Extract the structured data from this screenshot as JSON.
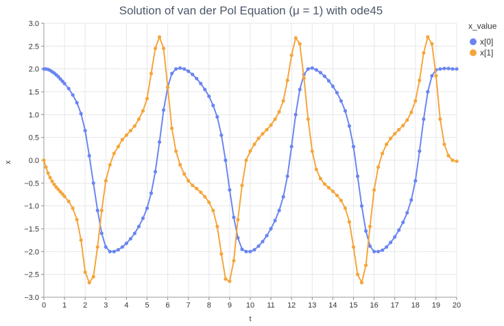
{
  "chart_data": {
    "type": "line",
    "title": "Solution of van der Pol Equation (μ = 1) with ode45",
    "xlabel": "t",
    "ylabel": "x",
    "xlim": [
      0,
      20
    ],
    "ylim": [
      -3.0,
      3.0
    ],
    "x_ticks": [
      "0",
      "1",
      "2",
      "3",
      "4",
      "5",
      "6",
      "7",
      "8",
      "9",
      "10",
      "11",
      "12",
      "13",
      "14",
      "15",
      "16",
      "17",
      "18",
      "19",
      "20"
    ],
    "y_ticks": [
      "3.0",
      "2.5",
      "2.0",
      "1.5",
      "1.0",
      "0.5",
      "0.0",
      "−0.5",
      "−1.0",
      "−1.5",
      "−2.0",
      "−2.5",
      "−3.0"
    ],
    "grid": true,
    "legend": {
      "title": "x_value",
      "placement": "right"
    },
    "series": [
      {
        "name": "x[0]",
        "color": "#6a85f0",
        "t": [
          0,
          0.1,
          0.2,
          0.3,
          0.4,
          0.5,
          0.6,
          0.7,
          0.8,
          0.9,
          1.0,
          1.2,
          1.4,
          1.6,
          1.8,
          2.0,
          2.2,
          2.4,
          2.6,
          2.8,
          3.0,
          3.2,
          3.4,
          3.6,
          3.8,
          4.0,
          4.2,
          4.4,
          4.6,
          4.8,
          5.0,
          5.2,
          5.4,
          5.6,
          5.8,
          6.0,
          6.2,
          6.4,
          6.6,
          6.8,
          7.0,
          7.2,
          7.4,
          7.6,
          7.8,
          8.0,
          8.2,
          8.4,
          8.6,
          8.8,
          9.0,
          9.2,
          9.4,
          9.6,
          9.8,
          10.0,
          10.2,
          10.4,
          10.6,
          10.8,
          11.0,
          11.2,
          11.4,
          11.6,
          11.8,
          12.0,
          12.2,
          12.4,
          12.6,
          12.8,
          13.0,
          13.2,
          13.4,
          13.6,
          13.8,
          14.0,
          14.2,
          14.4,
          14.6,
          14.8,
          15.0,
          15.2,
          15.4,
          15.6,
          15.8,
          16.0,
          16.2,
          16.4,
          16.6,
          16.8,
          17.0,
          17.2,
          17.4,
          17.6,
          17.8,
          18.0,
          18.2,
          18.4,
          18.6,
          18.8,
          19.0,
          19.2,
          19.4,
          19.6,
          19.8,
          20.0
        ],
        "values": [
          2.0,
          2.0,
          1.99,
          1.97,
          1.94,
          1.91,
          1.87,
          1.83,
          1.78,
          1.73,
          1.68,
          1.57,
          1.43,
          1.26,
          1.02,
          0.65,
          0.1,
          -0.5,
          -1.1,
          -1.6,
          -1.9,
          -2.0,
          -2.0,
          -1.96,
          -1.9,
          -1.82,
          -1.72,
          -1.6,
          -1.45,
          -1.27,
          -1.05,
          -0.72,
          -0.25,
          0.4,
          1.1,
          1.6,
          1.9,
          2.0,
          2.02,
          2.0,
          1.95,
          1.88,
          1.79,
          1.68,
          1.55,
          1.4,
          1.2,
          0.95,
          0.55,
          0.0,
          -0.65,
          -1.25,
          -1.7,
          -1.95,
          -2.0,
          -2.0,
          -1.96,
          -1.88,
          -1.78,
          -1.65,
          -1.5,
          -1.32,
          -1.1,
          -0.8,
          -0.35,
          0.3,
          1.0,
          1.55,
          1.88,
          2.0,
          2.02,
          1.98,
          1.92,
          1.84,
          1.74,
          1.62,
          1.48,
          1.3,
          1.08,
          0.75,
          0.3,
          -0.35,
          -1.0,
          -1.55,
          -1.88,
          -2.0,
          -2.0,
          -1.97,
          -1.9,
          -1.8,
          -1.68,
          -1.53,
          -1.36,
          -1.15,
          -0.87,
          -0.45,
          0.2,
          0.9,
          1.5,
          1.85,
          1.98,
          2.0,
          2.01,
          2.01,
          2.0,
          2.0
        ]
      },
      {
        "name": "x[1]",
        "color": "#f5a53b",
        "t": [
          0,
          0.1,
          0.2,
          0.3,
          0.4,
          0.5,
          0.6,
          0.7,
          0.8,
          0.9,
          1.0,
          1.2,
          1.4,
          1.6,
          1.8,
          2.0,
          2.2,
          2.4,
          2.6,
          2.8,
          3.0,
          3.2,
          3.4,
          3.6,
          3.8,
          4.0,
          4.2,
          4.4,
          4.6,
          4.8,
          5.0,
          5.2,
          5.4,
          5.6,
          5.8,
          6.0,
          6.2,
          6.4,
          6.6,
          6.8,
          7.0,
          7.2,
          7.4,
          7.6,
          7.8,
          8.0,
          8.2,
          8.4,
          8.6,
          8.8,
          9.0,
          9.2,
          9.4,
          9.6,
          9.8,
          10.0,
          10.2,
          10.4,
          10.6,
          10.8,
          11.0,
          11.2,
          11.4,
          11.6,
          11.8,
          12.0,
          12.2,
          12.4,
          12.6,
          12.8,
          13.0,
          13.2,
          13.4,
          13.6,
          13.8,
          14.0,
          14.2,
          14.4,
          14.6,
          14.8,
          15.0,
          15.2,
          15.4,
          15.6,
          15.8,
          16.0,
          16.2,
          16.4,
          16.6,
          16.8,
          17.0,
          17.2,
          17.4,
          17.6,
          17.8,
          18.0,
          18.2,
          18.4,
          18.6,
          18.8,
          19.0,
          19.2,
          19.4,
          19.6,
          19.8,
          20.0
        ],
        "values": [
          0.0,
          -0.15,
          -0.28,
          -0.38,
          -0.46,
          -0.53,
          -0.59,
          -0.64,
          -0.69,
          -0.74,
          -0.79,
          -0.9,
          -1.05,
          -1.3,
          -1.75,
          -2.45,
          -2.68,
          -2.55,
          -1.9,
          -1.1,
          -0.45,
          -0.1,
          0.15,
          0.3,
          0.45,
          0.55,
          0.65,
          0.75,
          0.9,
          1.08,
          1.35,
          1.9,
          2.45,
          2.7,
          2.45,
          1.6,
          0.7,
          0.2,
          -0.1,
          -0.3,
          -0.45,
          -0.55,
          -0.62,
          -0.7,
          -0.8,
          -0.92,
          -1.1,
          -1.45,
          -2.05,
          -2.6,
          -2.65,
          -2.2,
          -1.3,
          -0.55,
          0.0,
          0.2,
          0.35,
          0.48,
          0.58,
          0.67,
          0.77,
          0.9,
          1.06,
          1.3,
          1.75,
          2.3,
          2.68,
          2.55,
          1.8,
          0.9,
          0.2,
          -0.2,
          -0.4,
          -0.52,
          -0.6,
          -0.68,
          -0.77,
          -0.88,
          -1.05,
          -1.35,
          -1.9,
          -2.5,
          -2.68,
          -2.3,
          -1.45,
          -0.65,
          -0.15,
          0.15,
          0.35,
          0.48,
          0.58,
          0.67,
          0.76,
          0.88,
          1.05,
          1.3,
          1.75,
          2.35,
          2.7,
          2.55,
          1.85,
          0.9,
          0.35,
          0.1,
          0.0,
          -0.02
        ]
      }
    ]
  }
}
